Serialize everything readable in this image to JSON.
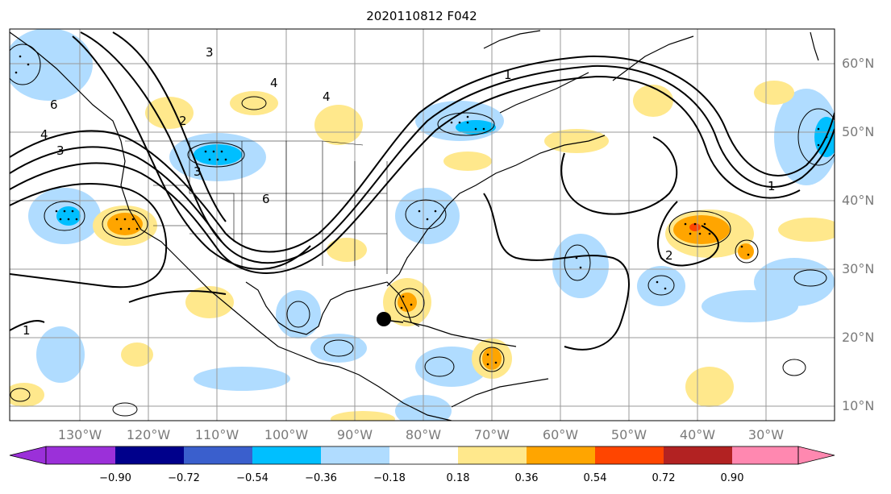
{
  "title": "2020110812 F042",
  "map": {
    "projection": "cylindrical lat-lon",
    "lat_labels": [
      "60°N",
      "50°N",
      "40°N",
      "30°N",
      "20°N",
      "10°N"
    ],
    "lon_labels": [
      "130°W",
      "120°W",
      "110°W",
      "100°W",
      "90°W",
      "80°W",
      "70°W",
      "60°W",
      "50°W",
      "40°W",
      "30°W"
    ],
    "gridlines": true,
    "storm_marker": "filled-black-circle"
  },
  "contour_labels": [
    "3",
    "4",
    "2",
    "4",
    "6",
    "4",
    "3",
    "3",
    "6",
    "1",
    "2",
    "1",
    "1"
  ],
  "colorbar": {
    "ticks": [
      "−0.90",
      "−0.72",
      "−0.54",
      "−0.36",
      "−0.18",
      "0.18",
      "0.36",
      "0.54",
      "0.72",
      "0.90"
    ],
    "colors": [
      "#9b30d9",
      "#00008b",
      "#3a5fcd",
      "#00bfff",
      "#b0dcff",
      "#ffffff",
      "#ffe88c",
      "#ffa500",
      "#ff4500",
      "#b22222",
      "#ff88b0"
    ],
    "extend": "both"
  },
  "legend_colors": {
    "neg_light": "#b0dcff",
    "neg_mid": "#00bfff",
    "pos_light": "#ffe88c",
    "pos_mid": "#ffa500",
    "pos_strong": "#ff4500"
  }
}
